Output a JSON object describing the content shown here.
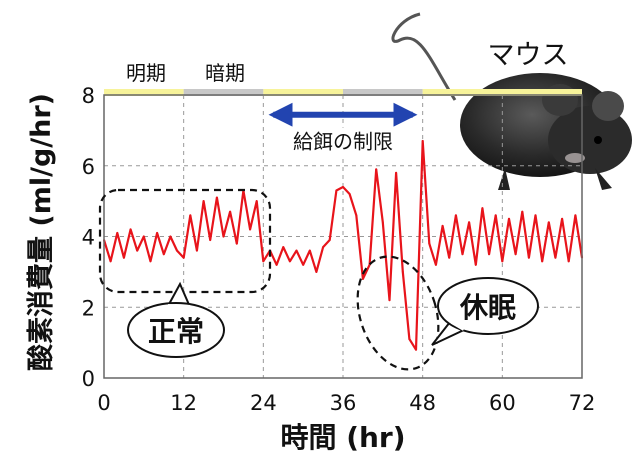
{
  "chart_data": {
    "type": "line",
    "xlabel": "時間 (hr)",
    "ylabel": "酸素消費量 (ml/g/hr)",
    "xlim": [
      0,
      72
    ],
    "ylim": [
      0,
      8
    ],
    "x_ticks": [
      0,
      12,
      24,
      36,
      48,
      60,
      72
    ],
    "y_ticks": [
      0,
      2,
      4,
      6,
      8
    ],
    "grid": true,
    "light_dark_labels": {
      "light": "明期",
      "dark": "暗期"
    },
    "light_dark_bar": [
      {
        "start": 0,
        "end": 12,
        "phase": "light"
      },
      {
        "start": 12,
        "end": 24,
        "phase": "dark"
      },
      {
        "start": 24,
        "end": 36,
        "phase": "light"
      },
      {
        "start": 36,
        "end": 48,
        "phase": "dark"
      },
      {
        "start": 48,
        "end": 72,
        "phase": "light"
      }
    ],
    "annotations": {
      "restricted_feeding": {
        "label": "給餌の制限",
        "x_start": 24,
        "x_end": 48,
        "y": 7.5
      },
      "normal": {
        "label": "正常"
      },
      "torpor": {
        "label": "休眠"
      },
      "animal": {
        "label": "マウス"
      }
    },
    "series": [
      {
        "color": "#e8141b",
        "x": [
          0,
          1,
          2,
          3,
          4,
          5,
          6,
          7,
          8,
          9,
          10,
          11,
          12,
          13,
          14,
          15,
          16,
          17,
          18,
          19,
          20,
          21,
          22,
          23,
          24,
          25,
          26,
          27,
          28,
          29,
          30,
          31,
          32,
          33,
          34,
          35,
          36,
          37,
          38,
          39,
          40,
          41,
          42,
          43,
          44,
          45,
          46,
          47,
          48,
          49,
          50,
          51,
          52,
          53,
          54,
          55,
          56,
          57,
          58,
          59,
          60,
          61,
          62,
          63,
          64,
          65,
          66,
          67,
          68,
          69,
          70,
          71,
          72
        ],
        "y": [
          3.9,
          3.3,
          4.1,
          3.4,
          4.2,
          3.6,
          4.0,
          3.3,
          4.1,
          3.5,
          4.0,
          3.6,
          3.4,
          4.6,
          3.6,
          5.0,
          3.9,
          5.1,
          4.0,
          4.7,
          3.8,
          5.3,
          4.2,
          5.0,
          3.3,
          3.6,
          3.2,
          3.7,
          3.3,
          3.6,
          3.2,
          3.6,
          3.0,
          3.7,
          3.9,
          5.3,
          5.4,
          5.2,
          4.6,
          2.8,
          3.2,
          5.9,
          4.4,
          2.2,
          5.8,
          3.0,
          1.1,
          0.8,
          6.7,
          3.8,
          3.2,
          4.3,
          3.4,
          4.6,
          3.5,
          4.4,
          3.2,
          4.8,
          3.5,
          4.6,
          3.3,
          4.5,
          3.5,
          4.7,
          3.4,
          4.6,
          3.3,
          4.4,
          3.4,
          4.5,
          3.3,
          4.6,
          3.4
        ]
      }
    ]
  }
}
